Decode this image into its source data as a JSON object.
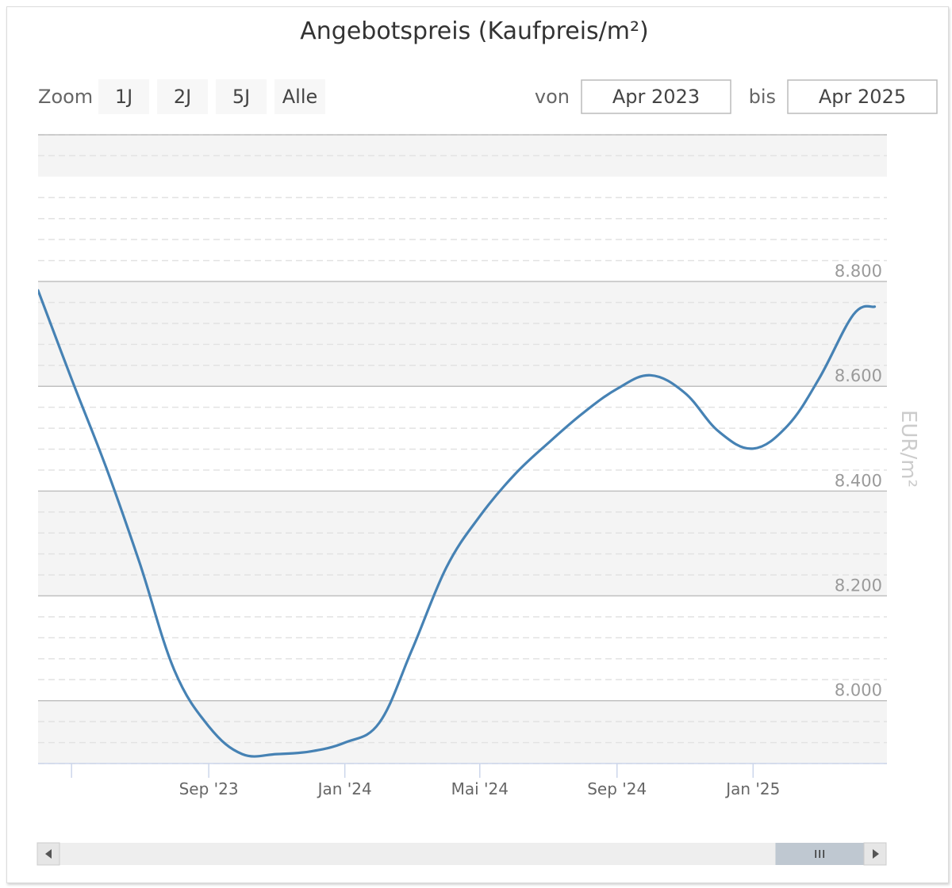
{
  "chart_data": {
    "type": "line",
    "title": "Angebotspreis (Kaufpreis/m²)",
    "ylabel": "EUR/m²",
    "xlabel": "",
    "x_ticks": [
      "Sep '23",
      "Jan '24",
      "Mai '24",
      "Sep '24",
      "Jan '25"
    ],
    "y_ticks": [
      "8.000",
      "8.200",
      "8.400",
      "8.600",
      "8.800"
    ],
    "ylim": [
      7880,
      9080
    ],
    "xlim": [
      "2023-04-01",
      "2025-05-01"
    ],
    "grid": true,
    "legend": "none",
    "series": [
      {
        "color": "#4682b4",
        "points": [
          {
            "x": "2023-04-01",
            "y": 8783
          },
          {
            "x": "2023-05-01",
            "y": 8614
          },
          {
            "x": "2023-06-01",
            "y": 8445
          },
          {
            "x": "2023-07-01",
            "y": 8263
          },
          {
            "x": "2023-08-01",
            "y": 8059
          },
          {
            "x": "2023-09-01",
            "y": 7951
          },
          {
            "x": "2023-10-01",
            "y": 7898
          },
          {
            "x": "2023-11-01",
            "y": 7898
          },
          {
            "x": "2023-12-01",
            "y": 7903
          },
          {
            "x": "2024-01-01",
            "y": 7920
          },
          {
            "x": "2024-02-01",
            "y": 7958
          },
          {
            "x": "2024-03-01",
            "y": 8096
          },
          {
            "x": "2024-04-01",
            "y": 8254
          },
          {
            "x": "2024-05-01",
            "y": 8352
          },
          {
            "x": "2024-06-01",
            "y": 8431
          },
          {
            "x": "2024-07-01",
            "y": 8491
          },
          {
            "x": "2024-08-01",
            "y": 8548
          },
          {
            "x": "2024-09-01",
            "y": 8595
          },
          {
            "x": "2024-10-01",
            "y": 8621
          },
          {
            "x": "2024-11-01",
            "y": 8587
          },
          {
            "x": "2024-12-01",
            "y": 8514
          },
          {
            "x": "2025-01-01",
            "y": 8481
          },
          {
            "x": "2025-02-01",
            "y": 8525
          },
          {
            "x": "2025-03-01",
            "y": 8614
          },
          {
            "x": "2025-04-01",
            "y": 8737
          },
          {
            "x": "2025-04-20",
            "y": 8752
          }
        ]
      }
    ]
  },
  "toolbar": {
    "zoom_label": "Zoom",
    "zoom_buttons": [
      "1J",
      "2J",
      "5J",
      "Alle"
    ],
    "from_label": "von",
    "from_value": "Apr 2023",
    "to_label": "bis",
    "to_value": "Apr 2025"
  },
  "colors": {
    "line": "#4682b4",
    "band": "#f4f4f4",
    "grid_major": "#c0c0c0",
    "grid_minor": "#e2e2e2",
    "scrollbar_track": "#eeeeee",
    "scrollbar_thumb": "#bfc8d1"
  },
  "scrollbar": {
    "thumb_start_fraction": 0.89,
    "thumb_end_fraction": 1.0,
    "thumb_icon": "grip-icon",
    "left_icon": "arrow-left-icon",
    "right_icon": "arrow-right-icon"
  }
}
